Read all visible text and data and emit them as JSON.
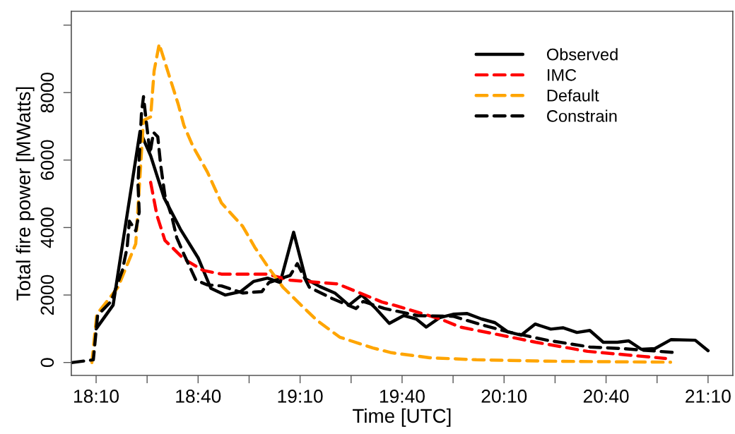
{
  "chart_data": {
    "type": "line",
    "xlabel": "Time [UTC]",
    "ylabel": "Total fire power [MWatts]",
    "xlim": [
      18.045,
      21.288
    ],
    "ylim": [
      -383,
      10410
    ],
    "xticks": [
      {
        "value": 18.1667,
        "label": "18:10"
      },
      {
        "value": 18.4167,
        "label": null
      },
      {
        "value": 18.6667,
        "label": "18:40"
      },
      {
        "value": 18.9167,
        "label": null
      },
      {
        "value": 19.1667,
        "label": "19:10"
      },
      {
        "value": 19.4167,
        "label": null
      },
      {
        "value": 19.6667,
        "label": "19:40"
      },
      {
        "value": 19.9167,
        "label": null
      },
      {
        "value": 20.1667,
        "label": "20:10"
      },
      {
        "value": 20.4167,
        "label": null
      },
      {
        "value": 20.6667,
        "label": "20:40"
      },
      {
        "value": 20.9167,
        "label": null
      },
      {
        "value": 21.1667,
        "label": "21:10"
      }
    ],
    "yticks": [
      0,
      2000,
      4000,
      6000,
      8000,
      {
        "value": 10000,
        "label": null
      }
    ],
    "grid": false,
    "legend": "top right",
    "marker": "none",
    "series": [
      {
        "name": "Observed",
        "color": "#000000",
        "line_style": "solid",
        "x": [
          18.167,
          18.25,
          18.382,
          18.434,
          18.5,
          18.58,
          18.667,
          18.729,
          18.799,
          18.875,
          18.938,
          19.007,
          19.069,
          19.135,
          19.194,
          19.264,
          19.337,
          19.406,
          19.469,
          19.538,
          19.604,
          19.674,
          19.736,
          19.785,
          19.851,
          19.917,
          19.986,
          20.056,
          20.122,
          20.184,
          20.25,
          20.319,
          20.396,
          20.455,
          20.524,
          20.587,
          20.653,
          20.722,
          20.778,
          20.84,
          20.906,
          20.986,
          21.104,
          21.167
        ],
        "values": [
          1000,
          1700,
          6850,
          6130,
          4880,
          3950,
          3100,
          2200,
          2000,
          2100,
          2400,
          2500,
          2370,
          3860,
          2480,
          2250,
          2060,
          1700,
          2000,
          1600,
          1160,
          1390,
          1290,
          1050,
          1330,
          1430,
          1450,
          1290,
          1180,
          910,
          810,
          1140,
          990,
          1030,
          890,
          950,
          600,
          600,
          640,
          390,
          410,
          680,
          660,
          350
        ]
      },
      {
        "name": "IMC",
        "color": "#ff0000",
        "line_style": "dashed",
        "x": [
          18.434,
          18.465,
          18.504,
          18.597,
          18.691,
          18.781,
          19.003,
          19.118,
          19.351,
          19.569,
          19.639,
          19.858,
          19.951,
          20.184,
          20.323,
          20.576,
          20.958
        ],
        "values": [
          5340,
          4360,
          3620,
          3070,
          2730,
          2620,
          2620,
          2440,
          2330,
          1790,
          1680,
          1280,
          1050,
          770,
          600,
          330,
          120
        ]
      },
      {
        "name": "Default",
        "color": "#ffa500",
        "line_style": "dashed",
        "x": [
          18.146,
          18.17,
          18.274,
          18.361,
          18.399,
          18.434,
          18.451,
          18.476,
          18.528,
          18.569,
          18.597,
          18.642,
          18.712,
          18.781,
          18.83,
          18.885,
          18.944,
          19.014,
          19.083,
          19.153,
          19.247,
          19.361,
          19.524,
          19.615,
          19.802,
          20.031,
          20.378,
          20.726,
          20.983
        ],
        "values": [
          0,
          1430,
          2230,
          3520,
          7180,
          7280,
          8640,
          9440,
          8440,
          7660,
          7030,
          6400,
          5650,
          4730,
          4400,
          4040,
          3420,
          2790,
          2230,
          1810,
          1260,
          750,
          430,
          290,
          140,
          80,
          40,
          20,
          10
        ]
      },
      {
        "name": "Constrain",
        "color": "#000000",
        "line_style": "dashed",
        "x": [
          18.052,
          18.153,
          18.174,
          18.24,
          18.295,
          18.319,
          18.33,
          18.361,
          18.378,
          18.372,
          18.389,
          18.399,
          18.413,
          18.431,
          18.448,
          18.469,
          18.483,
          18.504,
          18.538,
          18.562,
          18.597,
          18.656,
          18.712,
          18.781,
          18.885,
          18.979,
          19.014,
          19.118,
          19.153,
          19.212,
          19.326,
          19.441,
          19.476,
          19.58,
          19.743,
          19.917,
          20.056,
          20.184,
          20.378,
          20.587,
          20.75,
          20.993
        ],
        "values": [
          0,
          80,
          1400,
          1810,
          2720,
          3420,
          4190,
          3900,
          4460,
          5300,
          7390,
          7880,
          7120,
          6200,
          6820,
          6690,
          5860,
          4950,
          4320,
          3700,
          3210,
          2440,
          2300,
          2270,
          2060,
          2100,
          2370,
          2580,
          2930,
          2230,
          1890,
          1600,
          1810,
          1600,
          1390,
          1370,
          1120,
          910,
          660,
          460,
          410,
          300
        ]
      }
    ]
  }
}
